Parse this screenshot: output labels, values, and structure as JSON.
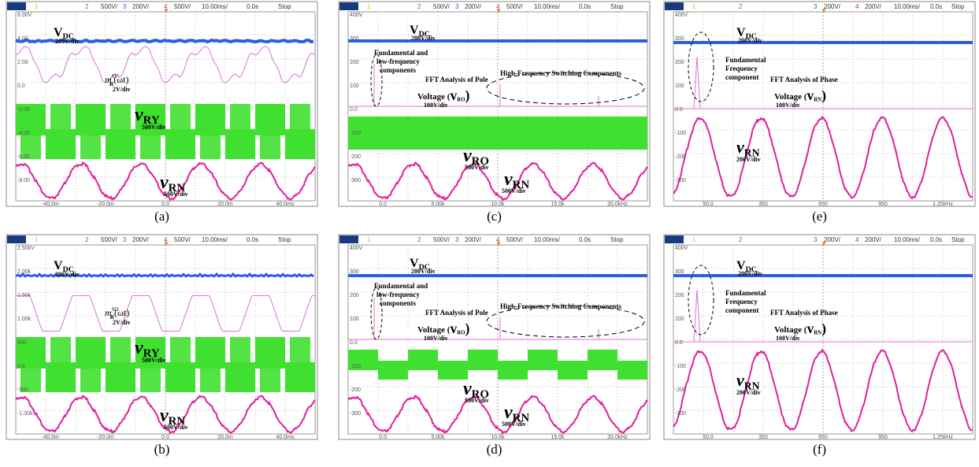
{
  "panels": [
    {
      "header": [
        "1",
        "2",
        "500V/",
        "3",
        "200V/",
        "4",
        "500V/",
        "10.00ms/",
        "0.0s",
        "Stop"
      ],
      "y_labels": [
        "6.00V",
        "4.00",
        "2.00",
        "0.0",
        "-2.00",
        "-4.00",
        "-6.00",
        "-8.00"
      ],
      "x_labels": [
        "-40.0m",
        "-20.0m",
        "0.0",
        "20.0m",
        "40.0ms"
      ],
      "annotations": [
        {
          "text": "V",
          "sub": "DC"
        },
        {
          "text": "200V/div"
        },
        {
          "text": "m",
          "sub": "R",
          "sup": "SV",
          "tail": "(ωt)"
        },
        {
          "text": "2V/div"
        },
        {
          "text": "v",
          "sub": "RY"
        },
        {
          "text": "500V/div"
        },
        {
          "text": "v",
          "sub": "RN"
        },
        {
          "text": "500V/div"
        }
      ],
      "caption": "(a)"
    },
    {
      "header": [
        "1",
        "2",
        "500V/",
        "3",
        "200V/",
        "4",
        "500V/",
        "10.00ms/",
        "0.0s",
        "Stop"
      ],
      "y_labels": [
        "2.50kV",
        "2.00k",
        "1.50k",
        "1.00k",
        "500",
        "0.0",
        "-500",
        "-1.00k"
      ],
      "x_labels": [
        "-40.0m",
        "-20.0m",
        "0.0",
        "20.0m",
        "40.0ms"
      ],
      "annotations": [
        {
          "text": "V",
          "sub": "DC"
        },
        {
          "text": "200V/div"
        },
        {
          "text": "m",
          "sub": "R",
          "sup": "SO",
          "tail": "(ωt)"
        },
        {
          "text": "2V/div"
        },
        {
          "text": "v",
          "sub": "RY"
        },
        {
          "text": "500V/div"
        },
        {
          "text": "v",
          "sub": "RN"
        },
        {
          "text": "500V/div"
        }
      ],
      "caption": "(b)"
    },
    {
      "header": [
        "1",
        "2",
        "500V/",
        "3",
        "200V/",
        "4",
        "500V/",
        "10.00ms/",
        "0.0s",
        "Stop"
      ],
      "y_labels": [
        "400V",
        "300",
        "200",
        "100",
        "0.0",
        "-100",
        "-200",
        "-300"
      ],
      "x_labels": [
        "0.0",
        "5.00k",
        "10.0k",
        "15.0k",
        "20.0kHz"
      ],
      "annotations": [
        {
          "text": "V",
          "sub": "DC"
        },
        {
          "text": "200V/div"
        },
        {
          "text": "Fundamental and"
        },
        {
          "text": "low-frequency"
        },
        {
          "text": "components"
        },
        {
          "text": "FFT Analysis of Pole"
        },
        {
          "pre": "Voltage (",
          "text": "v",
          "sub": "RO",
          "tail": ")"
        },
        {
          "text": "100V/div"
        },
        {
          "text": "High-Frequency Switching Components"
        },
        {
          "text": "v",
          "sub": "RO"
        },
        {
          "text": "500V/div"
        },
        {
          "text": "v",
          "sub": "RN"
        },
        {
          "text": "500V/div"
        }
      ],
      "caption": "(c)"
    },
    {
      "header": [
        "1",
        "2",
        "500V/",
        "3",
        "200V/",
        "4",
        "500V/",
        "10.00ms/",
        "0.0s",
        "Stop"
      ],
      "y_labels": [
        "400V",
        "300",
        "200",
        "100",
        "0.0",
        "-100",
        "-200",
        "-300"
      ],
      "x_labels": [
        "0.0",
        "5.00k",
        "10.0k",
        "15.0k",
        "20.0kHz"
      ],
      "annotations": [
        {
          "text": "V",
          "sub": "DC"
        },
        {
          "text": "200V/div"
        },
        {
          "text": "Fundamental and"
        },
        {
          "text": "low-frequency"
        },
        {
          "text": "components"
        },
        {
          "text": "FFT Analysis of Pole"
        },
        {
          "pre": "Voltage (",
          "text": "v",
          "sub": "RO",
          "tail": ")"
        },
        {
          "text": "100V/div"
        },
        {
          "text": "High-Frequency Switching Components"
        },
        {
          "text": "v",
          "sub": "RO"
        },
        {
          "text": "500V/div"
        },
        {
          "text": "v",
          "sub": "RN"
        },
        {
          "text": "500V/div"
        }
      ],
      "caption": "(d)"
    },
    {
      "header": [
        "1",
        "2",
        "3",
        "200V/",
        "4",
        "200V/",
        "10.00ms/",
        "0.0s",
        "Stop"
      ],
      "y_labels": [
        "400V",
        "300",
        "200",
        "100",
        "0.0",
        "-100",
        "-200",
        "-300"
      ],
      "x_labels": [
        "50.0",
        "350",
        "650",
        "950",
        "1.25kHz"
      ],
      "annotations": [
        {
          "text": "V",
          "sub": "DC"
        },
        {
          "text": "200V/div"
        },
        {
          "text": "Fundamental"
        },
        {
          "text": "Frequency"
        },
        {
          "text": "component"
        },
        {
          "text": "FFT Analysis of Phase"
        },
        {
          "pre": "Voltage (",
          "text": "v",
          "sub": "RN",
          "tail": ")"
        },
        {
          "text": "100V/div"
        },
        {
          "text": "v",
          "sub": "RN"
        },
        {
          "text": "200V/div"
        }
      ],
      "caption": "(e)"
    },
    {
      "header": [
        "1",
        "2",
        "3",
        "200V/",
        "4",
        "200V/",
        "10.00ms/",
        "0.0s",
        "Stop"
      ],
      "y_labels": [
        "400V",
        "300",
        "200",
        "100",
        "0.0",
        "-100",
        "-200",
        "-300"
      ],
      "x_labels": [
        "50.0",
        "350",
        "650",
        "950",
        "1.25kHz"
      ],
      "annotations": [
        {
          "text": "V",
          "sub": "DC"
        },
        {
          "text": "200V/div"
        },
        {
          "text": "Fundamental"
        },
        {
          "text": "Frequency"
        },
        {
          "text": "component"
        },
        {
          "text": "FFT Analysis of Phase"
        },
        {
          "pre": "Voltage (",
          "text": "v",
          "sub": "RN",
          "tail": ")"
        },
        {
          "text": "100V/div"
        },
        {
          "text": "v",
          "sub": "RN"
        },
        {
          "text": "200V/div"
        }
      ],
      "caption": "(f)"
    }
  ]
}
